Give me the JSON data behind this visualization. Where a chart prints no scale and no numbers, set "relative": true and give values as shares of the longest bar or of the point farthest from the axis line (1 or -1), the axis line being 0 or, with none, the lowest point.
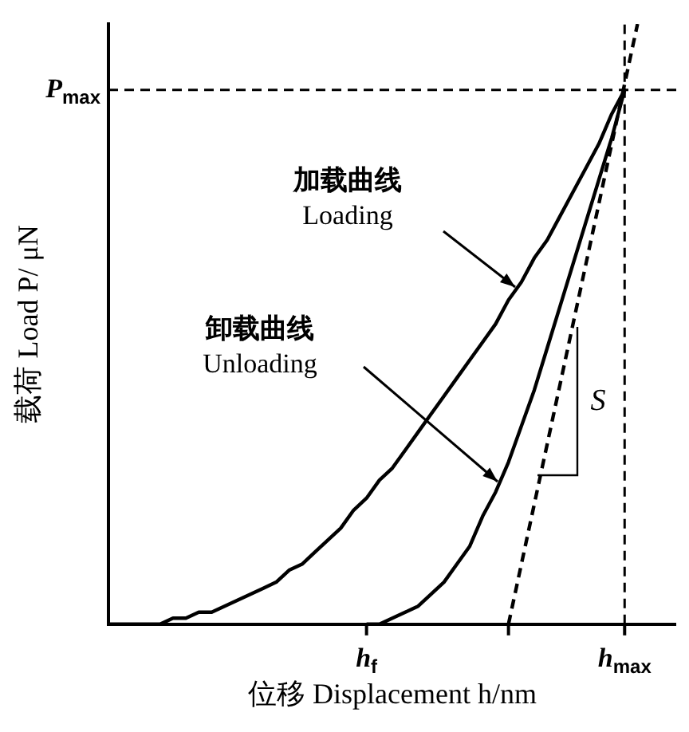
{
  "chart_data": {
    "type": "line",
    "relative": true,
    "xlabel": "位移 Displacement h/nm",
    "ylabel": "载荷 Load P/ μN",
    "categories": [
      null,
      null,
      null,
      null,
      null,
      null,
      null,
      null,
      null,
      null,
      null,
      null,
      null,
      null,
      null,
      null,
      null,
      null,
      null,
      null,
      "h$_{f}$",
      null,
      null,
      null,
      null,
      null,
      null,
      null,
      null,
      null,
      null,
      null,
      null,
      null,
      null,
      null,
      null,
      null,
      null,
      null,
      "h$_{max}$",
      null,
      null,
      null,
      null
    ],
    "series": [
      {
        "color": "#000000",
        "line_style": "solid",
        "values": [
          0,
          0,
          0,
          0,
          0,
          0.01,
          0.01,
          0.02,
          0.02,
          0.03,
          0.04,
          0.05,
          0.06,
          0.07,
          0.09,
          0.1,
          0.12,
          0.14,
          0.16,
          0.19,
          0.21,
          0.24,
          0.26,
          0.29,
          0.32,
          0.35,
          0.38,
          0.41,
          0.44,
          0.47,
          0.5,
          0.54,
          0.57,
          0.61,
          0.64,
          0.68,
          0.72,
          0.76,
          0.8,
          0.85,
          0.89,
          null,
          null,
          null,
          null
        ]
      },
      {
        "color": "#000000",
        "line_style": "solid",
        "values": [
          null,
          null,
          null,
          null,
          null,
          null,
          null,
          null,
          null,
          null,
          null,
          null,
          null,
          null,
          null,
          null,
          null,
          null,
          null,
          null,
          0,
          0,
          0.01,
          0.02,
          0.03,
          0.05,
          0.07,
          0.1,
          0.13,
          0.18,
          0.22,
          0.27,
          0.33,
          0.39,
          0.46,
          0.53,
          0.6,
          0.67,
          0.74,
          0.81,
          0.89,
          null,
          null,
          null,
          null
        ]
      },
      {
        "color": "#000000",
        "line_style": "dashed",
        "values": [
          null,
          null,
          null,
          null,
          null,
          null,
          null,
          null,
          null,
          null,
          null,
          null,
          null,
          null,
          null,
          null,
          null,
          null,
          null,
          null,
          null,
          null,
          null,
          null,
          null,
          null,
          null,
          null,
          null,
          null,
          null,
          0,
          0.1,
          0.2,
          0.3,
          0.4,
          0.5,
          0.6,
          0.7,
          0.8,
          0.9,
          1,
          null,
          null,
          null
        ]
      }
    ],
    "ref_lines": [
      {
        "axis": "y",
        "value": 0.89,
        "label": "P$_{max}$",
        "line_style": "dashed"
      },
      {
        "axis": "x",
        "value": "h$_{max}$",
        "line_style": "dashed"
      }
    ],
    "annotations": [
      "加载曲线\nLoading",
      "卸载曲线\nUnloading",
      "S"
    ],
    "grid": false,
    "legend": false,
    "marker": "none"
  }
}
